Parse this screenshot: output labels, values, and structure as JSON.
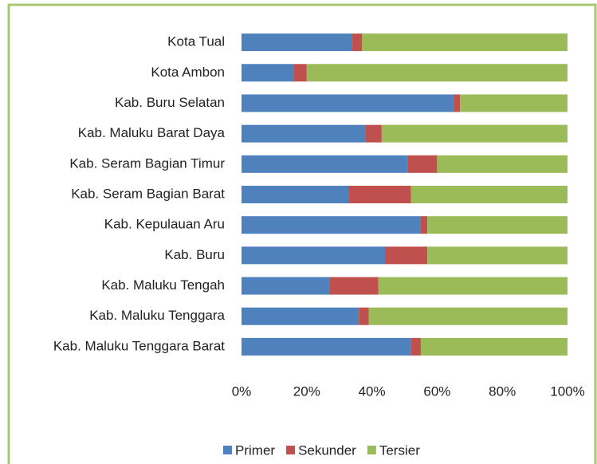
{
  "chart_data": {
    "type": "stacked_barh",
    "categories": [
      "Kota Tual",
      "Kota Ambon",
      "Kab. Buru Selatan",
      "Kab. Maluku Barat Daya",
      "Kab. Seram Bagian Timur",
      "Kab. Seram Bagian Barat",
      "Kab. Kepulauan Aru",
      "Kab. Buru",
      "Kab. Maluku Tengah",
      "Kab. Maluku Tenggara",
      "Kab. Maluku Tenggara Barat"
    ],
    "series": [
      {
        "name": "Primer",
        "color": "#4f81bd",
        "values": [
          34,
          16,
          65,
          38,
          51,
          33,
          55,
          44,
          27,
          36,
          52
        ]
      },
      {
        "name": "Sekunder",
        "color": "#c0504d",
        "values": [
          3,
          4,
          2,
          5,
          9,
          19,
          2,
          13,
          15,
          3,
          3
        ]
      },
      {
        "name": "Tersier",
        "color": "#9bbb59",
        "values": [
          63,
          80,
          33,
          57,
          40,
          48,
          43,
          43,
          58,
          61,
          45
        ]
      }
    ],
    "xlim": [
      0,
      100
    ],
    "xticks": [
      {
        "value": 0,
        "label": "0%"
      },
      {
        "value": 20,
        "label": "20%"
      },
      {
        "value": 40,
        "label": "40%"
      },
      {
        "value": 60,
        "label": "60%"
      },
      {
        "value": 80,
        "label": "80%"
      },
      {
        "value": 100,
        "label": "100%"
      }
    ],
    "legend": "bottom"
  }
}
